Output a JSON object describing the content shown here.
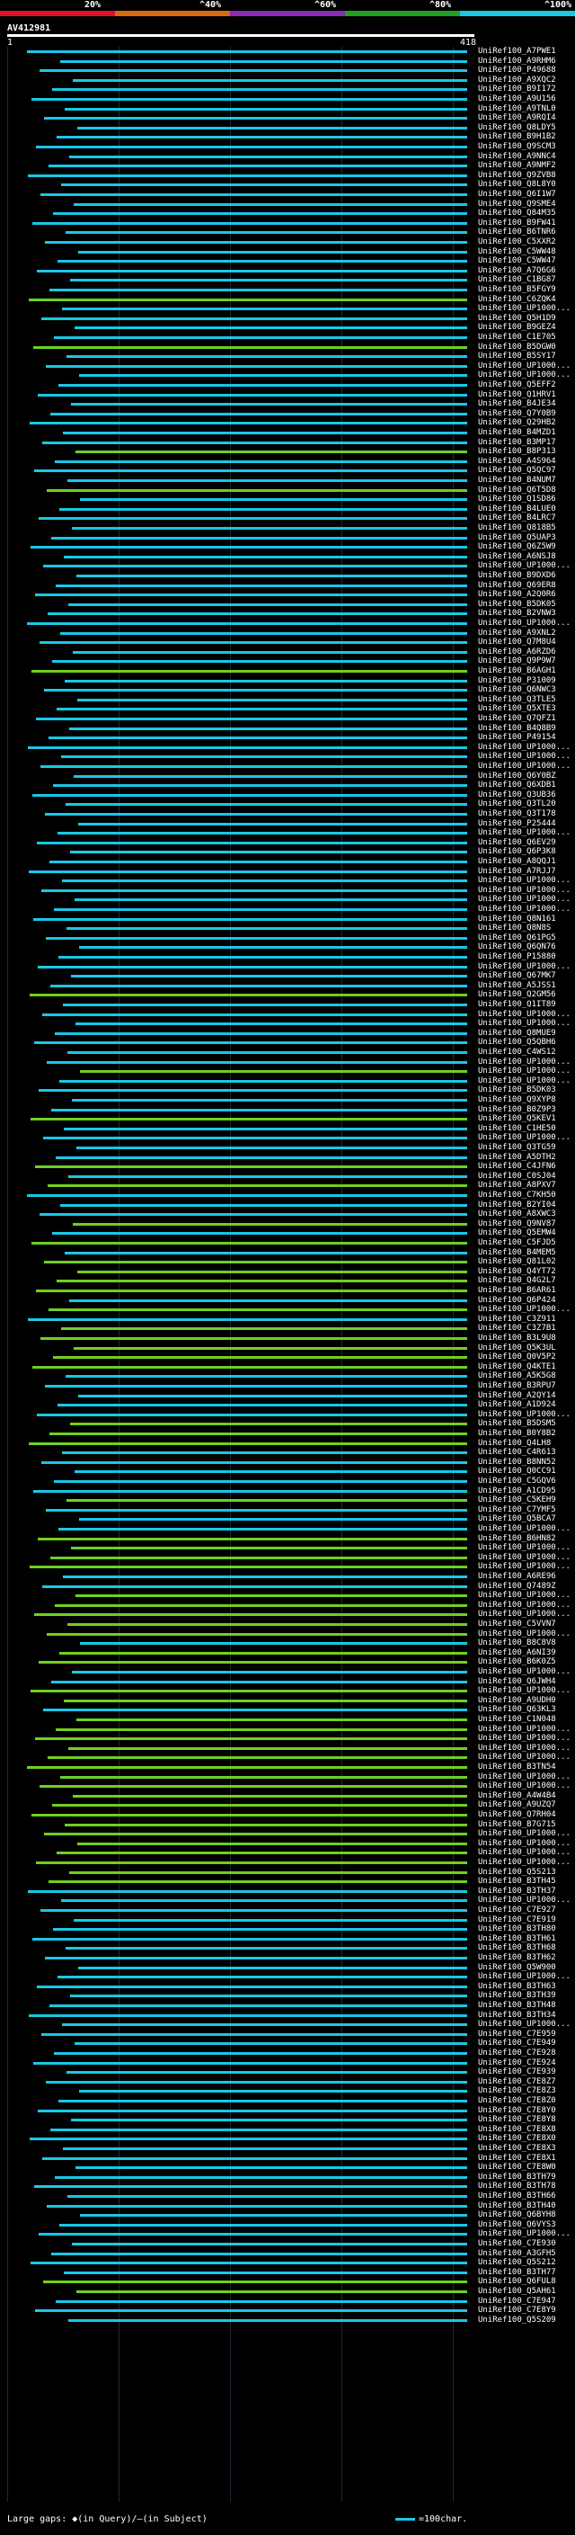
{
  "header": {
    "legend": [
      {
        "label": "20%",
        "color": "#e0102a"
      },
      {
        "label": "^40%",
        "color": "#d96a10"
      },
      {
        "label": "^60%",
        "color": "#8a2ab5"
      },
      {
        "label": "^80%",
        "color": "#22a022"
      },
      {
        "label": "^100%",
        "color": "#19c8e6"
      }
    ],
    "query_id": "AV412981",
    "ruler_start": "1",
    "ruler_end": "418"
  },
  "colors": {
    "green": "#6fd020",
    "cyan": "#19c8e6"
  },
  "hits": [
    {
      "label": "UniRef100_A7PWE1",
      "color": "cyan"
    },
    {
      "label": "UniRef100_A9RHM6",
      "color": "cyan"
    },
    {
      "label": "UniRef100_P49688",
      "color": "cyan"
    },
    {
      "label": "UniRef100_A9XQC2",
      "color": "cyan"
    },
    {
      "label": "UniRef100_B9I172",
      "color": "cyan"
    },
    {
      "label": "UniRef100_A9U156",
      "color": "cyan"
    },
    {
      "label": "UniRef100_A9TNL0",
      "color": "cyan"
    },
    {
      "label": "UniRef100_A9RQI4",
      "color": "cyan"
    },
    {
      "label": "UniRef100_Q8LDY5",
      "color": "cyan"
    },
    {
      "label": "UniRef100_B9H1B2",
      "color": "cyan"
    },
    {
      "label": "UniRef100_Q9SCM3",
      "color": "cyan"
    },
    {
      "label": "UniRef100_A9NNC4",
      "color": "cyan"
    },
    {
      "label": "UniRef100_A9NMF2",
      "color": "cyan"
    },
    {
      "label": "UniRef100_Q9ZVB8",
      "color": "cyan"
    },
    {
      "label": "UniRef100_Q8L8Y0",
      "color": "cyan"
    },
    {
      "label": "UniRef100_Q6I1W7",
      "color": "cyan"
    },
    {
      "label": "UniRef100_Q9SME4",
      "color": "cyan"
    },
    {
      "label": "UniRef100_Q84M35",
      "color": "cyan"
    },
    {
      "label": "UniRef100_B9FW41",
      "color": "cyan"
    },
    {
      "label": "UniRef100_B6TNR6",
      "color": "cyan"
    },
    {
      "label": "UniRef100_C5XXR2",
      "color": "cyan"
    },
    {
      "label": "UniRef100_C5WW48",
      "color": "cyan"
    },
    {
      "label": "UniRef100_C5WW47",
      "color": "cyan"
    },
    {
      "label": "UniRef100_A7Q6G6",
      "color": "cyan"
    },
    {
      "label": "UniRef100_C1BG87",
      "color": "cyan"
    },
    {
      "label": "UniRef100_B5FGY9",
      "color": "cyan"
    },
    {
      "label": "UniRef100_C6ZQK4",
      "color": "green"
    },
    {
      "label": "UniRef100_UP1000...",
      "color": "cyan"
    },
    {
      "label": "UniRef100_Q5H1D9",
      "color": "cyan"
    },
    {
      "label": "UniRef100_B9GEZ4",
      "color": "cyan"
    },
    {
      "label": "UniRef100_C1E705",
      "color": "cyan"
    },
    {
      "label": "UniRef100_B5DGW0",
      "color": "green"
    },
    {
      "label": "UniRef100_B5SY17",
      "color": "cyan"
    },
    {
      "label": "UniRef100_UP1000...",
      "color": "cyan"
    },
    {
      "label": "UniRef100_UP1000...",
      "color": "cyan"
    },
    {
      "label": "UniRef100_Q5EFF2",
      "color": "cyan"
    },
    {
      "label": "UniRef100_Q1HRV1",
      "color": "cyan"
    },
    {
      "label": "UniRef100_B4JE34",
      "color": "cyan"
    },
    {
      "label": "UniRef100_Q7Y0B9",
      "color": "cyan"
    },
    {
      "label": "UniRef100_Q29HB2",
      "color": "cyan"
    },
    {
      "label": "UniRef100_B4MZD1",
      "color": "cyan"
    },
    {
      "label": "UniRef100_B3MP17",
      "color": "cyan"
    },
    {
      "label": "UniRef100_B8P313",
      "color": "green"
    },
    {
      "label": "UniRef100_A4S964",
      "color": "cyan"
    },
    {
      "label": "UniRef100_Q5QC97",
      "color": "cyan"
    },
    {
      "label": "UniRef100_B4NUM7",
      "color": "cyan"
    },
    {
      "label": "UniRef100_Q6T5D8",
      "color": "green"
    },
    {
      "label": "UniRef100_Q1SD86",
      "color": "cyan"
    },
    {
      "label": "UniRef100_B4LUE0",
      "color": "cyan"
    },
    {
      "label": "UniRef100_B4LRC7",
      "color": "cyan"
    },
    {
      "label": "UniRef100_Q818B5",
      "color": "cyan"
    },
    {
      "label": "UniRef100_Q5UAP3",
      "color": "cyan"
    },
    {
      "label": "UniRef100_Q6Z5W9",
      "color": "cyan"
    },
    {
      "label": "UniRef100_A6NSJ8",
      "color": "cyan"
    },
    {
      "label": "UniRef100_UP1000...",
      "color": "cyan"
    },
    {
      "label": "UniRef100_B9DXD6",
      "color": "cyan"
    },
    {
      "label": "UniRef100_Q69ER8",
      "color": "cyan"
    },
    {
      "label": "UniRef100_A2Q0R6",
      "color": "cyan"
    },
    {
      "label": "UniRef100_B5DK05",
      "color": "cyan"
    },
    {
      "label": "UniRef100_B2VNW3",
      "color": "cyan"
    },
    {
      "label": "UniRef100_UP1000...",
      "color": "cyan"
    },
    {
      "label": "UniRef100_A9XNL2",
      "color": "cyan"
    },
    {
      "label": "UniRef100_Q7M8U4",
      "color": "cyan"
    },
    {
      "label": "UniRef100_A6RZD6",
      "color": "cyan"
    },
    {
      "label": "UniRef100_Q9P9W7",
      "color": "cyan"
    },
    {
      "label": "UniRef100_B6AGH1",
      "color": "green"
    },
    {
      "label": "UniRef100_P31009",
      "color": "cyan"
    },
    {
      "label": "UniRef100_Q6NWC3",
      "color": "cyan"
    },
    {
      "label": "UniRef100_Q3TLE5",
      "color": "cyan"
    },
    {
      "label": "UniRef100_Q5XTE3",
      "color": "cyan"
    },
    {
      "label": "UniRef100_Q7QFZ1",
      "color": "cyan"
    },
    {
      "label": "UniRef100_B4Q8B9",
      "color": "cyan"
    },
    {
      "label": "UniRef100_P49154",
      "color": "cyan"
    },
    {
      "label": "UniRef100_UP1000...",
      "color": "cyan"
    },
    {
      "label": "UniRef100_UP1000...",
      "color": "cyan"
    },
    {
      "label": "UniRef100_UP1000...",
      "color": "cyan"
    },
    {
      "label": "UniRef100_Q6Y0BZ",
      "color": "cyan"
    },
    {
      "label": "UniRef100_Q6XDB1",
      "color": "cyan"
    },
    {
      "label": "UniRef100_Q3UB36",
      "color": "cyan"
    },
    {
      "label": "UniRef100_Q3TL20",
      "color": "cyan"
    },
    {
      "label": "UniRef100_Q3T178",
      "color": "cyan"
    },
    {
      "label": "UniRef100_P25444",
      "color": "cyan"
    },
    {
      "label": "UniRef100_UP1000...",
      "color": "cyan"
    },
    {
      "label": "UniRef100_Q6EV29",
      "color": "cyan"
    },
    {
      "label": "UniRef100_Q6P3K8",
      "color": "cyan"
    },
    {
      "label": "UniRef100_A8QQJ1",
      "color": "cyan"
    },
    {
      "label": "UniRef100_A7RJJ7",
      "color": "cyan"
    },
    {
      "label": "UniRef100_UP1000...",
      "color": "cyan"
    },
    {
      "label": "UniRef100_UP1000...",
      "color": "cyan"
    },
    {
      "label": "UniRef100_UP1000...",
      "color": "cyan"
    },
    {
      "label": "UniRef100_UP1000...",
      "color": "cyan"
    },
    {
      "label": "UniRef100_Q8N161",
      "color": "cyan"
    },
    {
      "label": "UniRef100_Q8N8S",
      "color": "cyan"
    },
    {
      "label": "UniRef100_Q61PG5",
      "color": "cyan"
    },
    {
      "label": "UniRef100_Q6QN76",
      "color": "cyan"
    },
    {
      "label": "UniRef100_P15880",
      "color": "cyan"
    },
    {
      "label": "UniRef100_UP1000...",
      "color": "cyan"
    },
    {
      "label": "UniRef100_Q67MK7",
      "color": "cyan"
    },
    {
      "label": "UniRef100_A5JSS1",
      "color": "cyan"
    },
    {
      "label": "UniRef100_Q2GM56",
      "color": "green"
    },
    {
      "label": "UniRef100_Q1IT89",
      "color": "cyan"
    },
    {
      "label": "UniRef100_UP1000...",
      "color": "cyan"
    },
    {
      "label": "UniRef100_UP1000...",
      "color": "cyan"
    },
    {
      "label": "UniRef100_Q8MUE9",
      "color": "cyan"
    },
    {
      "label": "UniRef100_Q5QBH6",
      "color": "cyan"
    },
    {
      "label": "UniRef100_C4WS12",
      "color": "cyan"
    },
    {
      "label": "UniRef100_UP1000...",
      "color": "cyan"
    },
    {
      "label": "UniRef100_UP1000...",
      "color": "green"
    },
    {
      "label": "UniRef100_UP1000...",
      "color": "cyan"
    },
    {
      "label": "UniRef100_B5DK03",
      "color": "cyan"
    },
    {
      "label": "UniRef100_Q9XYP8",
      "color": "cyan"
    },
    {
      "label": "UniRef100_B0Z9P3",
      "color": "cyan"
    },
    {
      "label": "UniRef100_Q5KEV1",
      "color": "green"
    },
    {
      "label": "UniRef100_C1HE50",
      "color": "cyan"
    },
    {
      "label": "UniRef100_UP1000...",
      "color": "cyan"
    },
    {
      "label": "UniRef100_Q3TG59",
      "color": "cyan"
    },
    {
      "label": "UniRef100_A5DTH2",
      "color": "cyan"
    },
    {
      "label": "UniRef100_C4JFN6",
      "color": "green"
    },
    {
      "label": "UniRef100_C0SJ04",
      "color": "cyan"
    },
    {
      "label": "UniRef100_A8PXV7",
      "color": "green"
    },
    {
      "label": "UniRef100_C7KH50",
      "color": "cyan"
    },
    {
      "label": "UniRef100_B2YI04",
      "color": "cyan"
    },
    {
      "label": "UniRef100_A8XWC3",
      "color": "cyan"
    },
    {
      "label": "UniRef100_Q9NV87",
      "color": "green"
    },
    {
      "label": "UniRef100_Q5EMW4",
      "color": "cyan"
    },
    {
      "label": "UniRef100_C5FJD5",
      "color": "green"
    },
    {
      "label": "UniRef100_B4MEM5",
      "color": "cyan"
    },
    {
      "label": "UniRef100_Q81L02",
      "color": "green"
    },
    {
      "label": "UniRef100_Q4YT72",
      "color": "green"
    },
    {
      "label": "UniRef100_Q4G2L7",
      "color": "green"
    },
    {
      "label": "UniRef100_B6AR61",
      "color": "green"
    },
    {
      "label": "UniRef100_Q6P424",
      "color": "cyan"
    },
    {
      "label": "UniRef100_UP1000...",
      "color": "green"
    },
    {
      "label": "UniRef100_C3Z911",
      "color": "cyan"
    },
    {
      "label": "UniRef100_C3Z7B1",
      "color": "green"
    },
    {
      "label": "UniRef100_B3L9U8",
      "color": "green"
    },
    {
      "label": "UniRef100_Q5K3UL",
      "color": "green"
    },
    {
      "label": "UniRef100_Q0V5P2",
      "color": "green"
    },
    {
      "label": "UniRef100_Q4KTE1",
      "color": "green"
    },
    {
      "label": "UniRef100_A5K5G8",
      "color": "cyan"
    },
    {
      "label": "UniRef100_B3RPU7",
      "color": "cyan"
    },
    {
      "label": "UniRef100_A2QY14",
      "color": "cyan"
    },
    {
      "label": "UniRef100_A1D924",
      "color": "cyan"
    },
    {
      "label": "UniRef100_UP1000...",
      "color": "cyan"
    },
    {
      "label": "UniRef100_B5DSM5",
      "color": "green"
    },
    {
      "label": "UniRef100_B0Y8B2",
      "color": "green"
    },
    {
      "label": "UniRef100_Q4LH8",
      "color": "green"
    },
    {
      "label": "UniRef100_C4R613",
      "color": "cyan"
    },
    {
      "label": "UniRef100_B8NN52",
      "color": "cyan"
    },
    {
      "label": "UniRef100_Q0CC91",
      "color": "cyan"
    },
    {
      "label": "UniRef100_C5GQV6",
      "color": "cyan"
    },
    {
      "label": "UniRef100_A1CD95",
      "color": "cyan"
    },
    {
      "label": "UniRef100_C5KEH9",
      "color": "green"
    },
    {
      "label": "UniRef100_C7YMF5",
      "color": "cyan"
    },
    {
      "label": "UniRef100_Q5BCA7",
      "color": "cyan"
    },
    {
      "label": "UniRef100_UP1000...",
      "color": "cyan"
    },
    {
      "label": "UniRef100_B6HN82",
      "color": "green"
    },
    {
      "label": "UniRef100_UP1000...",
      "color": "green"
    },
    {
      "label": "UniRef100_UP1000...",
      "color": "green"
    },
    {
      "label": "UniRef100_UP1000...",
      "color": "green"
    },
    {
      "label": "UniRef100_A6RE96",
      "color": "cyan"
    },
    {
      "label": "UniRef100_Q7489Z",
      "color": "cyan"
    },
    {
      "label": "UniRef100_UP1000...",
      "color": "green"
    },
    {
      "label": "UniRef100_UP1000...",
      "color": "green"
    },
    {
      "label": "UniRef100_UP1000...",
      "color": "green"
    },
    {
      "label": "UniRef100_C5VVN7",
      "color": "green"
    },
    {
      "label": "UniRef100_UP1000...",
      "color": "green"
    },
    {
      "label": "UniRef100_B8C8V8",
      "color": "cyan"
    },
    {
      "label": "UniRef100_A6NI39",
      "color": "green"
    },
    {
      "label": "UniRef100_B6K0Z5",
      "color": "green"
    },
    {
      "label": "UniRef100_UP1000...",
      "color": "cyan"
    },
    {
      "label": "UniRef100_Q6JWH4",
      "color": "cyan"
    },
    {
      "label": "UniRef100_UP1000...",
      "color": "green"
    },
    {
      "label": "UniRef100_A9UDH0",
      "color": "green"
    },
    {
      "label": "UniRef100_Q63KL3",
      "color": "cyan"
    },
    {
      "label": "UniRef100_C1N048",
      "color": "green"
    },
    {
      "label": "UniRef100_UP1000...",
      "color": "green"
    },
    {
      "label": "UniRef100_UP1000...",
      "color": "green"
    },
    {
      "label": "UniRef100_UP1000...",
      "color": "green"
    },
    {
      "label": "UniRef100_UP1000...",
      "color": "green"
    },
    {
      "label": "UniRef100_B3TN54",
      "color": "green"
    },
    {
      "label": "UniRef100_UP1000...",
      "color": "green"
    },
    {
      "label": "UniRef100_UP1000...",
      "color": "green"
    },
    {
      "label": "UniRef100_A4W4B4",
      "color": "green"
    },
    {
      "label": "UniRef100_A9UZQ7",
      "color": "green"
    },
    {
      "label": "UniRef100_Q7RH04",
      "color": "green"
    },
    {
      "label": "UniRef100_B7G715",
      "color": "green"
    },
    {
      "label": "UniRef100_UP1000...",
      "color": "green"
    },
    {
      "label": "UniRef100_UP1000...",
      "color": "green"
    },
    {
      "label": "UniRef100_UP1000...",
      "color": "green"
    },
    {
      "label": "UniRef100_UP1000...",
      "color": "green"
    },
    {
      "label": "UniRef100_Q5S213",
      "color": "green"
    },
    {
      "label": "UniRef100_B3TH45",
      "color": "green"
    },
    {
      "label": "UniRef100_B3TH37",
      "color": "cyan"
    },
    {
      "label": "UniRef100_UP1000...",
      "color": "cyan"
    },
    {
      "label": "UniRef100_C7E927",
      "color": "cyan"
    },
    {
      "label": "UniRef100_C7E919",
      "color": "cyan"
    },
    {
      "label": "UniRef100_B3TH80",
      "color": "cyan"
    },
    {
      "label": "UniRef100_B3TH61",
      "color": "cyan"
    },
    {
      "label": "UniRef100_B3TH68",
      "color": "cyan"
    },
    {
      "label": "UniRef100_B3TH62",
      "color": "cyan"
    },
    {
      "label": "UniRef100_Q5W900",
      "color": "cyan"
    },
    {
      "label": "UniRef100_UP1000...",
      "color": "cyan"
    },
    {
      "label": "UniRef100_B3TH63",
      "color": "cyan"
    },
    {
      "label": "UniRef100_B3TH39",
      "color": "cyan"
    },
    {
      "label": "UniRef100_B3TH48",
      "color": "cyan"
    },
    {
      "label": "UniRef100_B3TH34",
      "color": "cyan"
    },
    {
      "label": "UniRef100_UP1000...",
      "color": "cyan"
    },
    {
      "label": "UniRef100_C7E959",
      "color": "cyan"
    },
    {
      "label": "UniRef100_C7E949",
      "color": "cyan"
    },
    {
      "label": "UniRef100_C7E928",
      "color": "cyan"
    },
    {
      "label": "UniRef100_C7E924",
      "color": "cyan"
    },
    {
      "label": "UniRef100_C7E939",
      "color": "cyan"
    },
    {
      "label": "UniRef100_C7E8Z7",
      "color": "cyan"
    },
    {
      "label": "UniRef100_C7E8Z3",
      "color": "cyan"
    },
    {
      "label": "UniRef100_C7E8Z0",
      "color": "cyan"
    },
    {
      "label": "UniRef100_C7E8Y0",
      "color": "cyan"
    },
    {
      "label": "UniRef100_C7E8Y8",
      "color": "cyan"
    },
    {
      "label": "UniRef100_C7E8X8",
      "color": "cyan"
    },
    {
      "label": "UniRef100_C7E8X0",
      "color": "cyan"
    },
    {
      "label": "UniRef100_C7E8X3",
      "color": "cyan"
    },
    {
      "label": "UniRef100_C7E8X1",
      "color": "cyan"
    },
    {
      "label": "UniRef100_C7E8W0",
      "color": "cyan"
    },
    {
      "label": "UniRef100_B3TH79",
      "color": "cyan"
    },
    {
      "label": "UniRef100_B3TH78",
      "color": "cyan"
    },
    {
      "label": "UniRef100_B3TH66",
      "color": "cyan"
    },
    {
      "label": "UniRef100_B3TH40",
      "color": "cyan"
    },
    {
      "label": "UniRef100_Q6BYH8",
      "color": "cyan"
    },
    {
      "label": "UniRef100_Q6VYS3",
      "color": "cyan"
    },
    {
      "label": "UniRef100_UP1000...",
      "color": "cyan"
    },
    {
      "label": "UniRef100_C7E930",
      "color": "cyan"
    },
    {
      "label": "UniRef100_A3GFH5",
      "color": "cyan"
    },
    {
      "label": "UniRef100_Q5S212",
      "color": "cyan"
    },
    {
      "label": "UniRef100_B3TH77",
      "color": "cyan"
    },
    {
      "label": "UniRef100_Q6FUL8",
      "color": "green"
    },
    {
      "label": "UniRef100_Q5AH61",
      "color": "green"
    },
    {
      "label": "UniRef100_C7E947",
      "color": "cyan"
    },
    {
      "label": "UniRef100_C7E8Y9",
      "color": "cyan"
    },
    {
      "label": "UniRef100_Q5S209",
      "color": "cyan"
    }
  ],
  "footer": {
    "gaps_text": "Large gaps: ◆(in Query)/—(in Subject)",
    "scale_text": "=100char."
  }
}
